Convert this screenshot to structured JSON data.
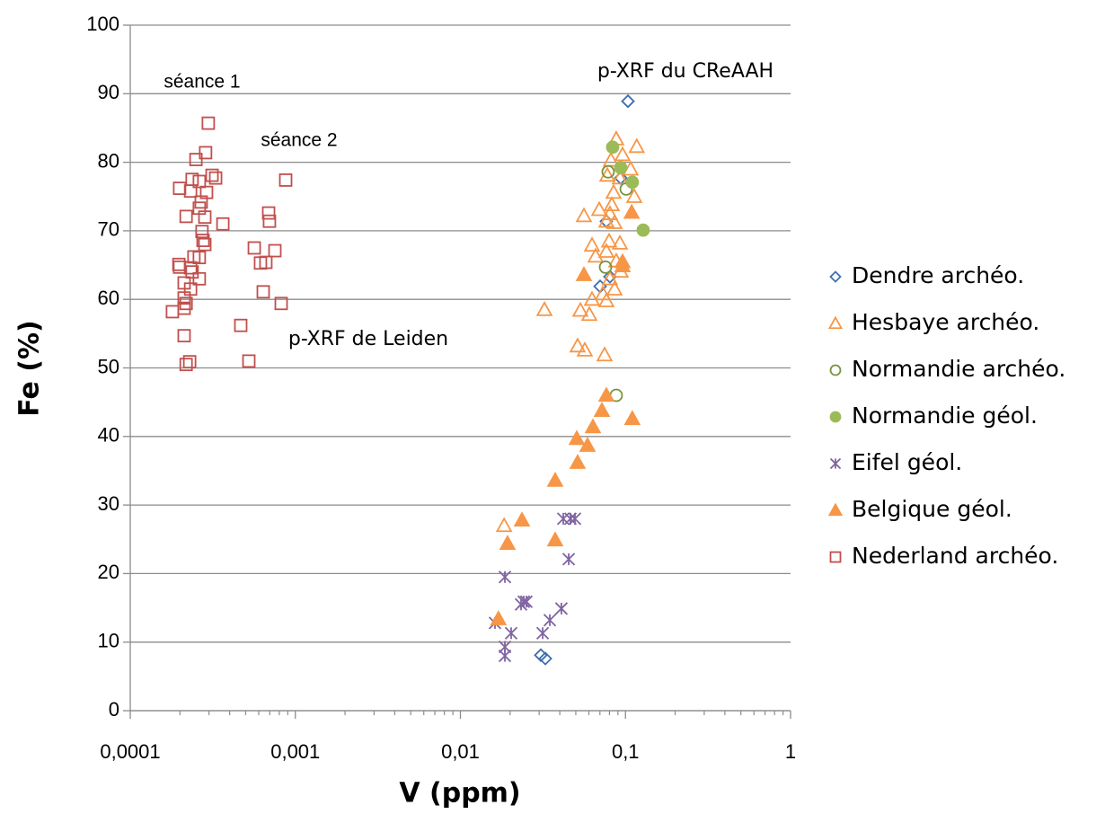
{
  "chart_data": {
    "type": "scatter",
    "xlabel": "V (ppm)",
    "ylabel": "Fe (%)",
    "xscale": "log",
    "xlim": [
      0.0001,
      1
    ],
    "ylim": [
      0,
      100
    ],
    "xticks": [
      {
        "value": 0.0001,
        "label": "0,0001"
      },
      {
        "value": 0.001,
        "label": "0,001"
      },
      {
        "value": 0.01,
        "label": "0,01"
      },
      {
        "value": 0.1,
        "label": "0,1"
      },
      1
    ],
    "yticks": [
      0,
      10,
      20,
      30,
      40,
      50,
      60,
      70,
      80,
      90,
      100
    ],
    "grid": true,
    "legend": "right",
    "annotations": [
      "séance 1",
      "séance 2",
      "p-XRF de Leiden",
      "p-XRF du CReAAH"
    ],
    "series": [
      {
        "name": "Dendre archéo.",
        "color": "#3e6fb0",
        "marker": "diamond",
        "filled": false,
        "x": [
          0.1035,
          0.0936,
          0.0766,
          0.0702,
          0.0805,
          0.0307,
          0.0327
        ],
        "values": [
          88.9,
          77.7,
          71.4,
          61.9,
          63.3,
          8.1,
          7.6
        ]
      },
      {
        "name": "Hesbaye archéo.",
        "color": "#f79646",
        "marker": "triangle",
        "filled": false,
        "x": [
          0.0879,
          0.117,
          0.096,
          0.0816,
          0.0776,
          0.0925,
          0.1075,
          0.113,
          0.0847,
          0.0826,
          0.056,
          0.0693,
          0.0805,
          0.0766,
          0.0858,
          0.0627,
          0.0659,
          0.0796,
          0.0766,
          0.0925,
          0.0879,
          0.0936,
          0.0805,
          0.0627,
          0.0858,
          0.0729,
          0.0766,
          0.0533,
          0.0604,
          0.0323,
          0.0513,
          0.0567,
          0.0747,
          0.0184
        ],
        "values": [
          83.4,
          82.3,
          81.1,
          80.3,
          78.1,
          77.7,
          79.0,
          75.0,
          75.6,
          73.8,
          72.2,
          73.1,
          72.5,
          71.4,
          71.2,
          67.9,
          66.3,
          68.5,
          67.0,
          68.2,
          65.6,
          64.1,
          63.0,
          60.0,
          61.5,
          60.8,
          59.8,
          58.4,
          57.8,
          58.5,
          53.2,
          52.6,
          51.9,
          27.0
        ]
      },
      {
        "name": "Normandie archéo.",
        "color": "#77933c",
        "marker": "circle",
        "filled": false,
        "x": [
          0.0785,
          0.101,
          0.0757,
          0.0879
        ],
        "values": [
          78.6,
          76.1,
          64.7,
          46.0
        ]
      },
      {
        "name": "Normandie géol.",
        "color": "#9bbb59",
        "marker": "circle",
        "filled": true,
        "x": [
          0.0836,
          0.0936,
          0.11,
          0.128
        ],
        "values": [
          82.2,
          79.2,
          77.1,
          70.1
        ]
      },
      {
        "name": "Eifel géol.",
        "color": "#8064a2",
        "marker": "star",
        "filled": false,
        "x": [
          0.042,
          0.0464,
          0.0494,
          0.0453,
          0.0186,
          0.0242,
          0.0233,
          0.0251,
          0.0348,
          0.0409,
          0.0162,
          0.0203,
          0.0315,
          0.0186,
          0.0186
        ],
        "values": [
          28.0,
          28.0,
          28.0,
          22.1,
          19.5,
          15.9,
          15.5,
          15.9,
          13.2,
          14.9,
          12.8,
          11.3,
          11.3,
          9.3,
          8.0
        ]
      },
      {
        "name": "Belgique géol.",
        "color": "#f79646",
        "marker": "triangle",
        "filled": true,
        "x": [
          0.109,
          0.056,
          0.096,
          0.096,
          0.0766,
          0.072,
          0.0635,
          0.11,
          0.0507,
          0.0589,
          0.0513,
          0.0375,
          0.0236,
          0.0375,
          0.0193,
          0.017
        ],
        "values": [
          72.7,
          63.6,
          65.5,
          64.9,
          46.0,
          43.8,
          41.4,
          42.6,
          39.7,
          38.7,
          36.2,
          33.6,
          27.8,
          24.9,
          24.4,
          13.4
        ]
      },
      {
        "name": "Nederland archéo.",
        "color": "#c0504d",
        "marker": "square",
        "filled": false,
        "x": [
          0.000297,
          0.000286,
          0.00025,
          0.000313,
          0.000329,
          0.000237,
          0.000262,
          0.000874,
          0.000199,
          0.000232,
          0.00029,
          0.000269,
          0.000262,
          0.000283,
          0.000218,
          0.000689,
          0.000697,
          0.000364,
          0.000272,
          0.000276,
          0.000283,
          0.000564,
          0.000752,
          0.000663,
          0.000615,
          0.000243,
          0.000262,
          0.000197,
          0.000199,
          0.000232,
          0.000237,
          0.000262,
          0.000212,
          0.000232,
          0.000639,
          0.000212,
          0.000218,
          0.000212,
          0.000821,
          0.00018,
          0.000467,
          0.000212,
          0.000229,
          0.000218,
          0.000523
        ],
        "values": [
          85.7,
          81.4,
          80.4,
          78.1,
          77.7,
          77.5,
          77.2,
          77.4,
          76.2,
          75.8,
          75.6,
          74.2,
          73.3,
          72.0,
          72.1,
          72.6,
          71.4,
          71.0,
          69.9,
          68.6,
          68.0,
          67.5,
          67.1,
          65.4,
          65.3,
          66.2,
          66.1,
          65.1,
          64.7,
          64.6,
          64.0,
          63.0,
          62.4,
          61.5,
          61.1,
          60.2,
          59.4,
          58.7,
          59.4,
          58.2,
          56.2,
          54.7,
          50.9,
          50.5,
          51.0
        ]
      }
    ]
  }
}
